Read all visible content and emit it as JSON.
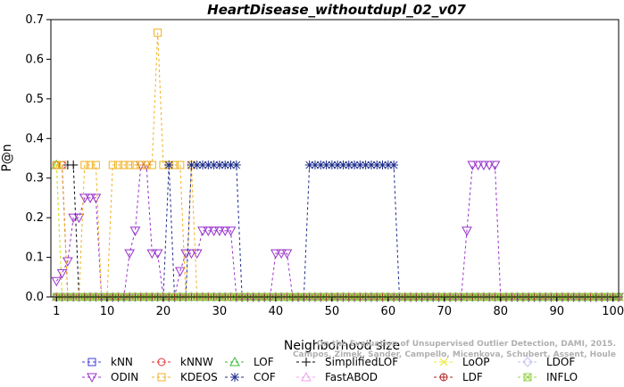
{
  "chart_data": {
    "type": "line",
    "title": "HeartDisease_withoutdupl_02_v07",
    "xlabel": "Neighborhood size",
    "ylabel": "P@n",
    "xlim": [
      0,
      101
    ],
    "ylim": [
      0,
      0.7
    ],
    "xticks": [
      1,
      10,
      20,
      30,
      40,
      50,
      60,
      70,
      80,
      90,
      100
    ],
    "yticks": [
      0.0,
      0.1,
      0.2,
      0.3,
      0.4,
      0.5,
      0.6,
      0.7
    ],
    "grid": false,
    "legend_position": "bottom",
    "watermark": [
      "Campos, Zimek, Sander, Campello, Micenkova, Schubert, Assent, Houle",
      "On the Evaluation of Unsupervised Outlier Detection, DAMI, 2015."
    ],
    "series": [
      {
        "name": "kNN",
        "color": "#3b3bdc",
        "marker": "square",
        "points": [
          [
            1,
            0.333
          ],
          [
            2,
            0.333
          ],
          [
            3,
            0.0
          ],
          [
            101,
            0.0
          ]
        ]
      },
      {
        "name": "kNNW",
        "color": "#e03030",
        "marker": "circle",
        "points": [
          [
            1,
            0.333
          ],
          [
            2,
            0.333
          ],
          [
            3,
            0.0
          ],
          [
            101,
            0.0
          ]
        ]
      },
      {
        "name": "LOF",
        "color": "#3cb83c",
        "marker": "triangle-up",
        "points": [
          [
            1,
            0.333
          ],
          [
            2,
            0.0
          ],
          [
            101,
            0.0
          ]
        ]
      },
      {
        "name": "SimplifiedLOF",
        "color": "#000000",
        "marker": "plus",
        "points": [
          [
            3,
            0.333
          ],
          [
            4,
            0.333
          ],
          [
            5,
            0.0
          ],
          [
            101,
            0.0
          ]
        ]
      },
      {
        "name": "LoOP",
        "color": "#e8e830",
        "marker": "x",
        "points": [
          [
            1,
            0.333
          ],
          [
            2,
            0.0
          ],
          [
            101,
            0.0
          ]
        ]
      },
      {
        "name": "LDOF",
        "color": "#c0c0f0",
        "marker": "diamond",
        "points": [
          [
            1,
            0.0
          ],
          [
            101,
            0.0
          ]
        ]
      },
      {
        "name": "ODIN",
        "color": "#9932cc",
        "marker": "triangle-down",
        "points": [
          [
            1,
            0.04
          ],
          [
            2,
            0.06
          ],
          [
            3,
            0.09
          ],
          [
            4,
            0.2
          ],
          [
            5,
            0.2
          ],
          [
            6,
            0.25
          ],
          [
            7,
            0.25
          ],
          [
            8,
            0.25
          ],
          [
            9,
            0.0
          ],
          [
            13,
            0.0
          ],
          [
            14,
            0.11
          ],
          [
            15,
            0.167
          ],
          [
            16,
            0.333
          ],
          [
            17,
            0.333
          ],
          [
            18,
            0.11
          ],
          [
            19,
            0.11
          ],
          [
            20,
            0.0
          ],
          [
            22,
            0.0
          ],
          [
            23,
            0.065
          ],
          [
            24,
            0.11
          ],
          [
            25,
            0.11
          ],
          [
            26,
            0.11
          ],
          [
            27,
            0.167
          ],
          [
            28,
            0.167
          ],
          [
            29,
            0.167
          ],
          [
            30,
            0.167
          ],
          [
            31,
            0.167
          ],
          [
            32,
            0.167
          ],
          [
            33,
            0.0
          ],
          [
            39,
            0.0
          ],
          [
            40,
            0.11
          ],
          [
            41,
            0.11
          ],
          [
            42,
            0.11
          ],
          [
            43,
            0.0
          ],
          [
            73,
            0.0
          ],
          [
            74,
            0.167
          ],
          [
            75,
            0.333
          ],
          [
            76,
            0.333
          ],
          [
            77,
            0.333
          ],
          [
            78,
            0.333
          ],
          [
            79,
            0.333
          ],
          [
            80,
            0.0
          ],
          [
            101,
            0.0
          ]
        ]
      },
      {
        "name": "KDEOS",
        "color": "#f0b020",
        "marker": "square",
        "points": [
          [
            1,
            0.333
          ],
          [
            2,
            0.333
          ],
          [
            3,
            0.0
          ],
          [
            5,
            0.0
          ],
          [
            6,
            0.333
          ],
          [
            7,
            0.333
          ],
          [
            8,
            0.333
          ],
          [
            9,
            0.0
          ],
          [
            10,
            0.0
          ],
          [
            11,
            0.333
          ],
          [
            12,
            0.333
          ],
          [
            13,
            0.333
          ],
          [
            14,
            0.333
          ],
          [
            15,
            0.333
          ],
          [
            16,
            0.333
          ],
          [
            17,
            0.333
          ],
          [
            18,
            0.333
          ],
          [
            19,
            0.667
          ],
          [
            20,
            0.333
          ],
          [
            21,
            0.333
          ],
          [
            22,
            0.333
          ],
          [
            23,
            0.333
          ],
          [
            24,
            0.0
          ],
          [
            25,
            0.333
          ],
          [
            26,
            0.0
          ],
          [
            101,
            0.0
          ]
        ]
      },
      {
        "name": "COF",
        "color": "#1c2c8c",
        "marker": "asterisk",
        "points": [
          [
            1,
            0.0
          ],
          [
            20,
            0.0
          ],
          [
            21,
            0.333
          ],
          [
            22,
            0.0
          ],
          [
            24,
            0.0
          ],
          [
            25,
            0.333
          ],
          [
            26,
            0.333
          ],
          [
            27,
            0.333
          ],
          [
            28,
            0.333
          ],
          [
            29,
            0.333
          ],
          [
            30,
            0.333
          ],
          [
            31,
            0.333
          ],
          [
            32,
            0.333
          ],
          [
            33,
            0.333
          ],
          [
            34,
            0.0
          ],
          [
            45,
            0.0
          ],
          [
            46,
            0.333
          ],
          [
            47,
            0.333
          ],
          [
            48,
            0.333
          ],
          [
            49,
            0.333
          ],
          [
            50,
            0.333
          ],
          [
            51,
            0.333
          ],
          [
            52,
            0.333
          ],
          [
            53,
            0.333
          ],
          [
            54,
            0.333
          ],
          [
            55,
            0.333
          ],
          [
            56,
            0.333
          ],
          [
            57,
            0.333
          ],
          [
            58,
            0.333
          ],
          [
            59,
            0.333
          ],
          [
            60,
            0.333
          ],
          [
            61,
            0.333
          ],
          [
            62,
            0.0
          ],
          [
            101,
            0.0
          ]
        ]
      },
      {
        "name": "FastABOD",
        "color": "#f0a0f0",
        "marker": "triangle-up",
        "points": [
          [
            1,
            0.0
          ],
          [
            101,
            0.0
          ]
        ]
      },
      {
        "name": "LDF",
        "color": "#b02020",
        "marker": "circle-plus",
        "points": [
          [
            1,
            0.0
          ],
          [
            101,
            0.0
          ]
        ]
      },
      {
        "name": "INFLO",
        "color": "#90d040",
        "marker": "square-x",
        "points": [
          [
            1,
            0.0
          ],
          [
            101,
            0.0
          ]
        ]
      }
    ]
  }
}
